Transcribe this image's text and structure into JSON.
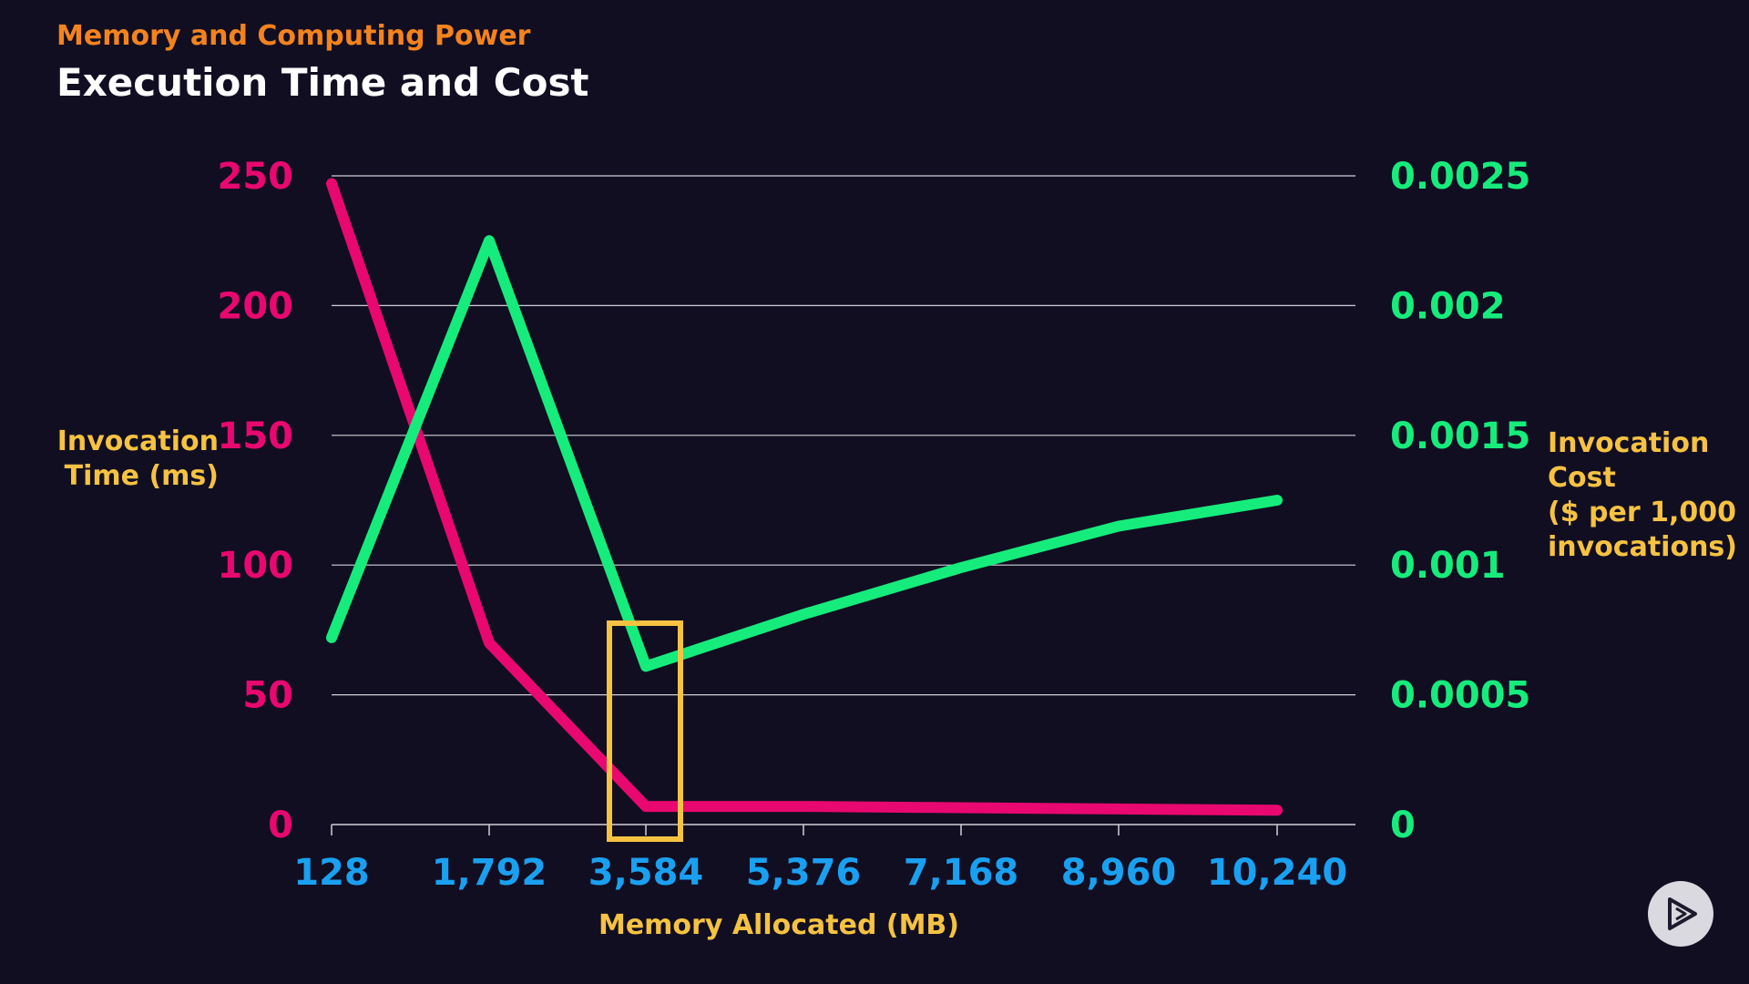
{
  "header": {
    "kicker": "Memory and Computing Power",
    "title": "Execution Time and Cost"
  },
  "chart_data": {
    "type": "line",
    "xlabel": "Memory Allocated (MB)",
    "ylabel_left": "Invocation Time (ms)",
    "ylabel_right_lines": [
      "Invocation",
      "Cost",
      "($ per 1,000",
      "invocations)"
    ],
    "x_ticks": [
      "128",
      "1,792",
      "3,584",
      "5,376",
      "7,168",
      "8,960",
      "10,240"
    ],
    "y_left_ticks": [
      "0",
      "50",
      "100",
      "150",
      "200",
      "250"
    ],
    "y_right_ticks": [
      "0",
      "0.0005",
      "0.001",
      "0.0015",
      "0.002",
      "0.0025"
    ],
    "y_left_range": [
      0,
      250
    ],
    "y_right_range": [
      0,
      0.0025
    ],
    "grid": true,
    "x": [
      128,
      1792,
      3584,
      5376,
      7168,
      8960,
      10240
    ],
    "series": [
      {
        "axis": "left",
        "color": "#e8086f",
        "values": [
          247,
          70,
          7,
          7,
          6.5,
          6,
          5.5
        ]
      },
      {
        "axis": "right",
        "color": "#16ec7c",
        "values": [
          0.00072,
          0.00225,
          0.00061,
          0.00081,
          0.00099,
          0.00115,
          0.00125
        ]
      }
    ],
    "highlight": {
      "x": 3584,
      "color": "#f5c242"
    },
    "colors": {
      "left_axis": "#e8086f",
      "right_axis": "#16ec7c",
      "x_axis": "#1aa0f0",
      "axis_titles": "#f5c242"
    }
  },
  "controls": {
    "play_icon": "play-icon"
  }
}
